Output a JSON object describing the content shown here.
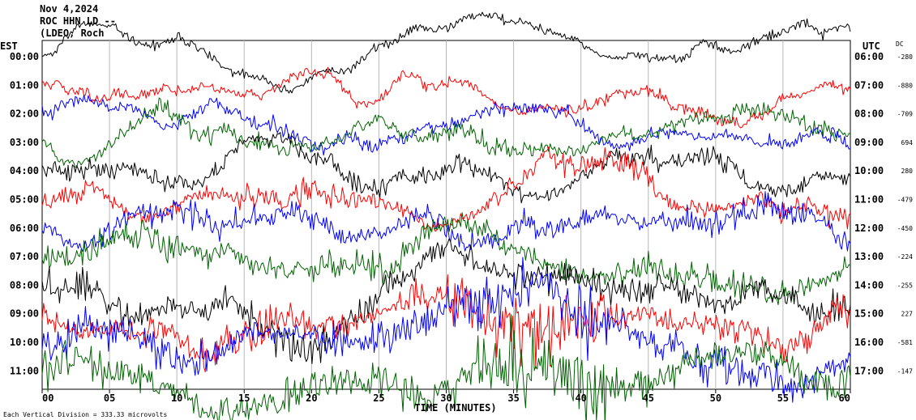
{
  "header": {
    "line1": "Nov 4,2024",
    "line2": "ROC HHN LD --",
    "line3": "(LDEO, Roch"
  },
  "chart_data": {
    "type": "line",
    "title": "Nov 4,2024",
    "left_axis_title": "EST",
    "right_axis_title": "UTC",
    "offset_title": "DC",
    "xlabel": "TIME (MINUTES)",
    "x_ticks": [
      "00",
      "05",
      "10",
      "15",
      "20",
      "25",
      "30",
      "35",
      "40",
      "45",
      "50",
      "55",
      "60"
    ],
    "xlim": [
      0,
      60
    ],
    "grid": true,
    "footer": "Each Vertical Division =  333.33 microvolts",
    "colors": {
      "black": "#000000",
      "red": "#ff0000",
      "blue": "#0000ff",
      "green": "#006400"
    },
    "rows": [
      {
        "est": "00:00",
        "utc": "06:00",
        "dc": "-280",
        "color": "black"
      },
      {
        "est": "01:00",
        "utc": "07:00",
        "dc": "-880",
        "color": "red"
      },
      {
        "est": "02:00",
        "utc": "08:00",
        "dc": "-709",
        "color": "blue"
      },
      {
        "est": "03:00",
        "utc": "09:00",
        "dc": "694",
        "color": "green"
      },
      {
        "est": "04:00",
        "utc": "10:00",
        "dc": "280",
        "color": "black"
      },
      {
        "est": "05:00",
        "utc": "11:00",
        "dc": "-479",
        "color": "red"
      },
      {
        "est": "06:00",
        "utc": "12:00",
        "dc": "-450",
        "color": "blue"
      },
      {
        "est": "07:00",
        "utc": "13:00",
        "dc": "-224",
        "color": "green"
      },
      {
        "est": "08:00",
        "utc": "14:00",
        "dc": "-255",
        "color": "black"
      },
      {
        "est": "09:00",
        "utc": "15:00",
        "dc": "227",
        "color": "red"
      },
      {
        "est": "10:00",
        "utc": "16:00",
        "dc": "-581",
        "color": "blue"
      },
      {
        "est": "11:00",
        "utc": "17:00",
        "dc": "-147",
        "color": "green"
      }
    ]
  }
}
